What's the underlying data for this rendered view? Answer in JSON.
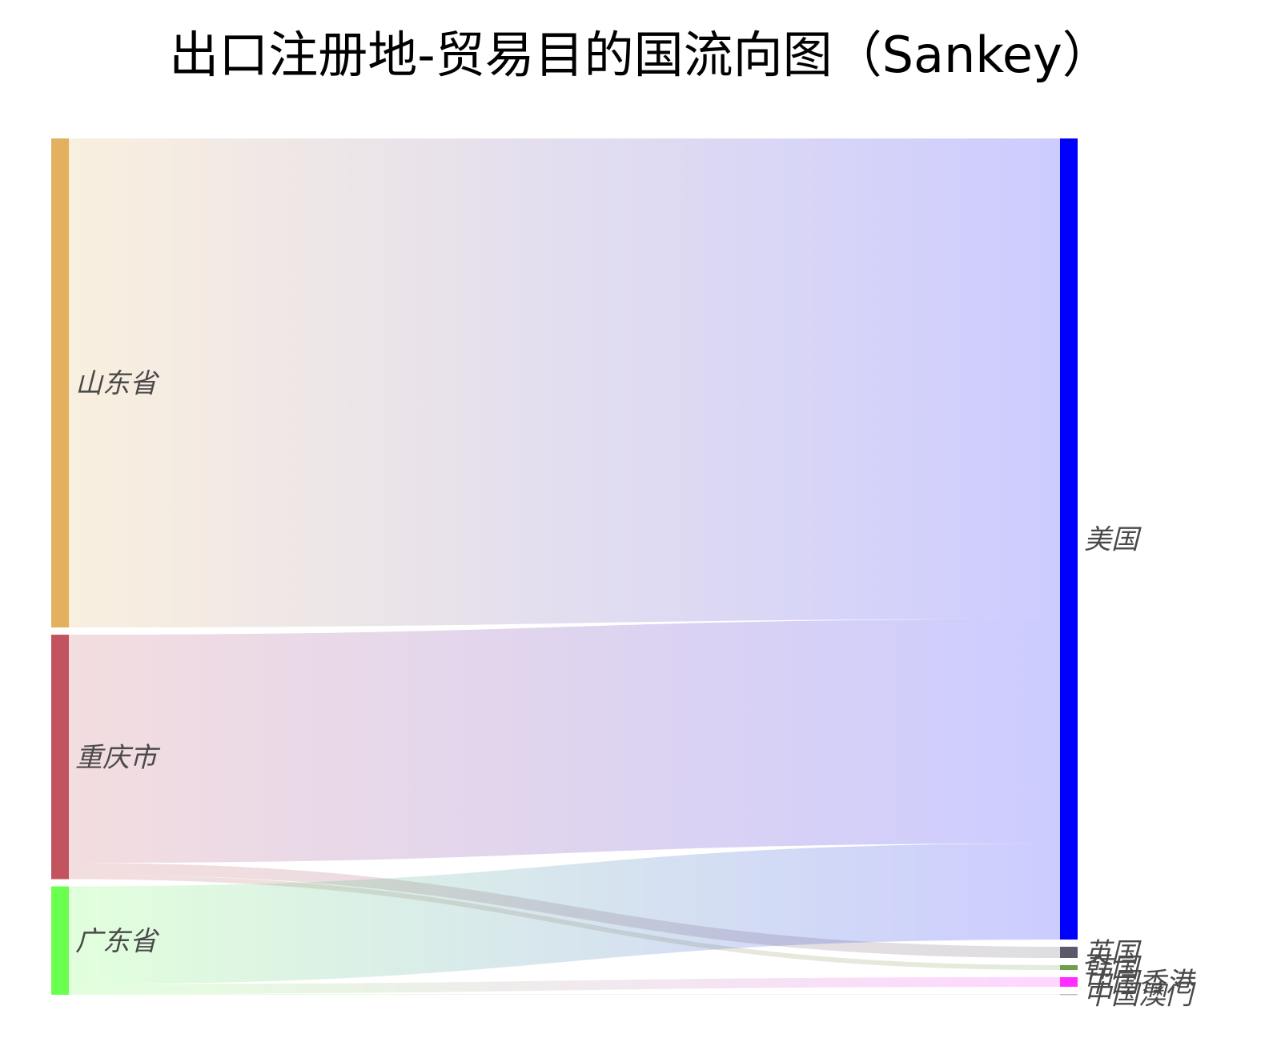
{
  "chart_data": {
    "type": "sankey",
    "title": "出口注册地-贸易目的国流向图（Sankey）",
    "sources": [
      {
        "name": "山东省",
        "color": "#e3b05f"
      },
      {
        "name": "重庆市",
        "color": "#c25460"
      },
      {
        "name": "广东省",
        "color": "#6bff4f"
      }
    ],
    "targets": [
      {
        "name": "美国",
        "color": "#0000ff"
      },
      {
        "name": "英国",
        "color": "#5a5a6a"
      },
      {
        "name": "韩国",
        "color": "#6e9e4e"
      },
      {
        "name": "中国香港",
        "color": "#ff30ff"
      },
      {
        "name": "中国澳门",
        "color": "#bfbfbf"
      }
    ],
    "links": [
      {
        "source": "山东省",
        "target": "美国",
        "value": 600
      },
      {
        "source": "重庆市",
        "target": "美国",
        "value": 280
      },
      {
        "source": "重庆市",
        "target": "英国",
        "value": 14
      },
      {
        "source": "重庆市",
        "target": "韩国",
        "value": 6
      },
      {
        "source": "广东省",
        "target": "美国",
        "value": 120
      },
      {
        "source": "广东省",
        "target": "中国香港",
        "value": 12
      },
      {
        "source": "广东省",
        "target": "中国澳门",
        "value": 1
      }
    ]
  }
}
